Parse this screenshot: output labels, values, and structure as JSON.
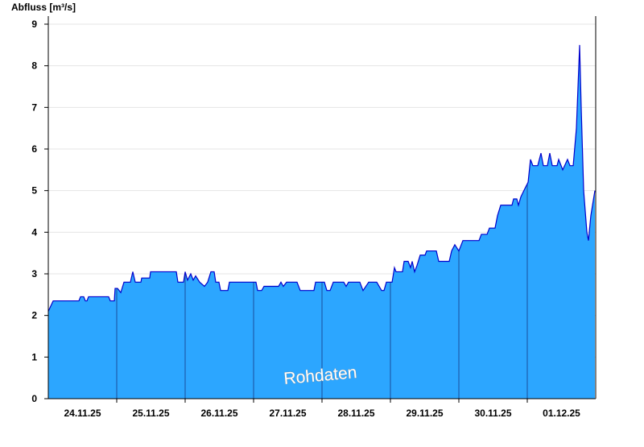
{
  "chart_data": {
    "type": "area",
    "y_label": "Abfluss [m³/s]",
    "annotation": "Rohdaten",
    "color": "#2ca6ff",
    "line_color": "#0000cc",
    "day_line_color": "#1a4f9c",
    "xlim": [
      0,
      8
    ],
    "xticks": [
      {
        "value": 0.5,
        "label": "24.11.25"
      },
      {
        "value": 1.5,
        "label": "25.11.25"
      },
      {
        "value": 2.5,
        "label": "26.11.25"
      },
      {
        "value": 3.5,
        "label": "27.11.25"
      },
      {
        "value": 4.5,
        "label": "28.11.25"
      },
      {
        "value": 5.5,
        "label": "29.11.25"
      },
      {
        "value": 6.5,
        "label": "30.11.25"
      },
      {
        "value": 7.5,
        "label": "01.12.25"
      }
    ],
    "xgrid": [
      1,
      2,
      3,
      4,
      5,
      6,
      7
    ],
    "ylim": [
      0,
      9
    ],
    "yticks": [
      0,
      1,
      2,
      3,
      4,
      5,
      6,
      7,
      8,
      9
    ],
    "grid": true,
    "x": [
      0,
      0.071,
      0.447,
      0.471,
      0.518,
      0.541,
      0.565,
      0.588,
      0.882,
      0.906,
      0.965,
      0.976,
      1.012,
      1.059,
      1.106,
      1.2,
      1.235,
      1.271,
      1.353,
      1.365,
      1.482,
      1.494,
      1.871,
      1.894,
      1.976,
      2.0,
      2.035,
      2.082,
      2.118,
      2.153,
      2.212,
      2.282,
      2.329,
      2.376,
      2.424,
      2.447,
      2.494,
      2.518,
      2.624,
      2.647,
      3.035,
      3.059,
      3.118,
      3.153,
      3.365,
      3.4,
      3.435,
      3.482,
      3.635,
      3.682,
      3.882,
      3.906,
      4.035,
      4.071,
      4.118,
      4.165,
      4.318,
      4.353,
      4.388,
      4.553,
      4.6,
      4.682,
      4.8,
      4.871,
      4.906,
      4.941,
      5.024,
      5.059,
      5.082,
      5.176,
      5.2,
      5.259,
      5.294,
      5.318,
      5.353,
      5.388,
      5.435,
      5.506,
      5.529,
      5.671,
      5.706,
      5.859,
      5.894,
      5.941,
      6.0,
      6.059,
      6.294,
      6.329,
      6.412,
      6.447,
      6.529,
      6.565,
      6.612,
      6.776,
      6.8,
      6.847,
      6.871,
      6.906,
      6.965,
      7.012,
      7.047,
      7.082,
      7.153,
      7.2,
      7.235,
      7.294,
      7.329,
      7.365,
      7.435,
      7.459,
      7.518,
      7.588,
      7.624,
      7.671,
      7.718,
      7.765,
      7.788,
      7.824,
      7.871,
      7.894,
      7.929,
      7.988
    ],
    "values": [
      2.1,
      2.35,
      2.35,
      2.45,
      2.45,
      2.35,
      2.35,
      2.45,
      2.45,
      2.35,
      2.35,
      2.65,
      2.65,
      2.55,
      2.8,
      2.8,
      3.05,
      2.8,
      2.8,
      2.9,
      2.9,
      3.05,
      3.05,
      2.8,
      2.8,
      3.05,
      2.85,
      3.0,
      2.85,
      2.95,
      2.8,
      2.7,
      2.8,
      3.05,
      3.05,
      2.8,
      2.8,
      2.6,
      2.6,
      2.8,
      2.8,
      2.6,
      2.6,
      2.7,
      2.7,
      2.8,
      2.7,
      2.8,
      2.8,
      2.6,
      2.6,
      2.8,
      2.8,
      2.6,
      2.6,
      2.8,
      2.8,
      2.7,
      2.8,
      2.8,
      2.6,
      2.8,
      2.8,
      2.6,
      2.6,
      2.8,
      2.8,
      3.15,
      3.05,
      3.05,
      3.3,
      3.3,
      3.15,
      3.3,
      3.05,
      3.2,
      3.45,
      3.45,
      3.55,
      3.55,
      3.3,
      3.3,
      3.55,
      3.7,
      3.55,
      3.8,
      3.8,
      3.95,
      3.95,
      4.1,
      4.1,
      4.4,
      4.65,
      4.65,
      4.8,
      4.8,
      4.65,
      4.85,
      5.05,
      5.2,
      5.75,
      5.6,
      5.6,
      5.9,
      5.6,
      5.6,
      5.9,
      5.6,
      5.6,
      5.75,
      5.5,
      5.75,
      5.6,
      5.6,
      6.5,
      8.5,
      7.0,
      5.0,
      4.0,
      3.8,
      4.4,
      5.0
    ]
  }
}
